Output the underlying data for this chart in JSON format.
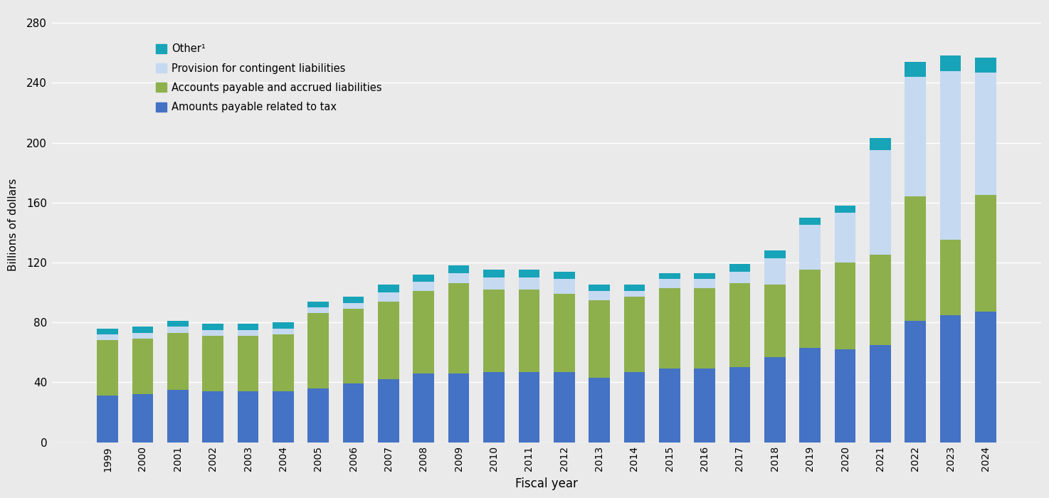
{
  "years": [
    1999,
    2000,
    2001,
    2002,
    2003,
    2004,
    2005,
    2006,
    2007,
    2008,
    2009,
    2010,
    2011,
    2012,
    2013,
    2014,
    2015,
    2016,
    2017,
    2018,
    2019,
    2020,
    2021,
    2022,
    2023,
    2024
  ],
  "amounts_payable_tax": [
    31,
    32,
    35,
    34,
    34,
    34,
    36,
    39,
    42,
    46,
    46,
    47,
    47,
    47,
    43,
    47,
    49,
    49,
    50,
    57,
    63,
    62,
    65,
    81,
    85,
    87
  ],
  "accounts_payable": [
    37,
    37,
    38,
    37,
    37,
    38,
    50,
    50,
    52,
    55,
    60,
    55,
    55,
    52,
    52,
    50,
    54,
    54,
    56,
    48,
    52,
    58,
    60,
    83,
    50,
    78
  ],
  "provision_contingent": [
    4,
    4,
    4,
    4,
    4,
    4,
    4,
    4,
    6,
    6,
    7,
    8,
    8,
    10,
    6,
    4,
    6,
    6,
    8,
    18,
    30,
    33,
    70,
    80,
    113,
    82
  ],
  "other": [
    4,
    4,
    4,
    4,
    4,
    4,
    4,
    4,
    5,
    5,
    5,
    5,
    5,
    5,
    4,
    4,
    4,
    4,
    5,
    5,
    5,
    5,
    8,
    10,
    10,
    10
  ],
  "color_tax": "#4472c4",
  "color_accounts": "#8db04c",
  "color_provision": "#c5d9f1",
  "color_other": "#17a3b8",
  "ylabel": "Billions of dollars",
  "xlabel": "Fiscal year",
  "ylim": [
    0,
    290
  ],
  "yticks": [
    0,
    40,
    80,
    120,
    160,
    200,
    240,
    280
  ],
  "legend_labels": [
    "Other¹",
    "Provision for contingent liabilities",
    "Accounts payable and accrued liabilities",
    "Amounts payable related to tax"
  ],
  "background_color": "#eaeaea",
  "grid_color": "#ffffff",
  "bar_width": 0.6
}
